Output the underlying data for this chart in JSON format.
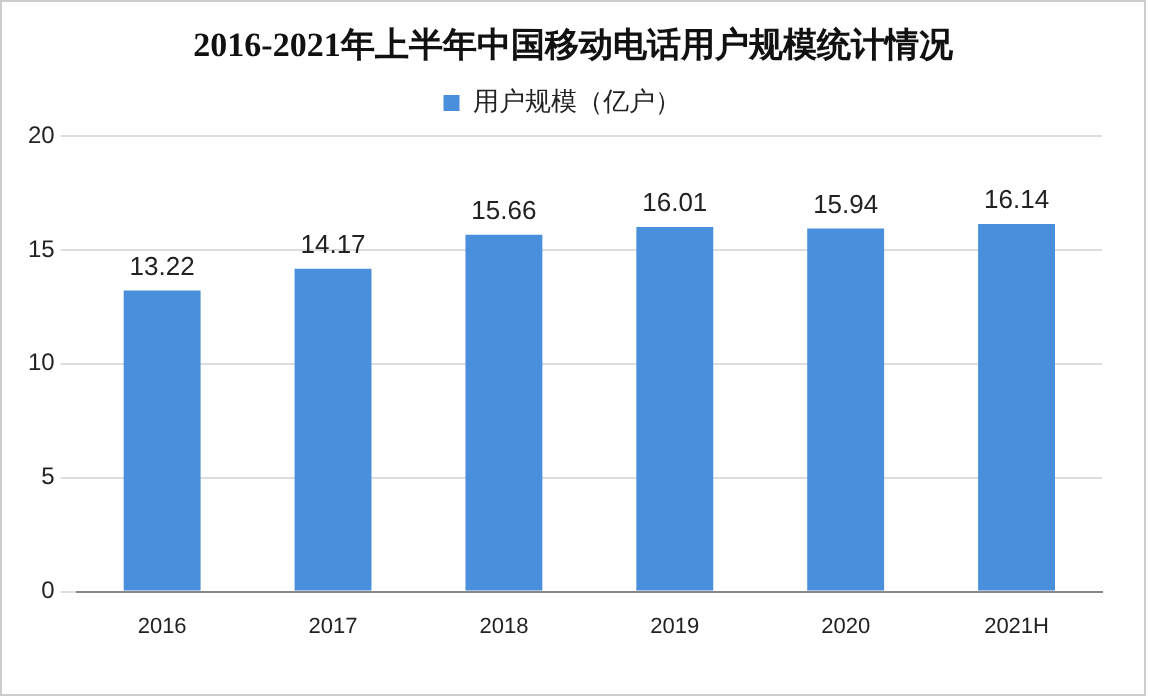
{
  "chart_data": {
    "type": "bar",
    "title": "2016-2021年上半年中国移动电话用户规模统计情况",
    "categories": [
      "2016",
      "2017",
      "2018",
      "2019",
      "2020",
      "2021H"
    ],
    "series": [
      {
        "name": "用户规模（亿户）",
        "color": "#4a8fdc",
        "values": [
          13.22,
          14.17,
          15.66,
          16.01,
          15.94,
          16.14
        ]
      }
    ],
    "ylim": [
      0,
      20
    ],
    "yticks": [
      0,
      5,
      10,
      15,
      20
    ],
    "grid": "y",
    "legend": "top",
    "data_labels": true
  }
}
